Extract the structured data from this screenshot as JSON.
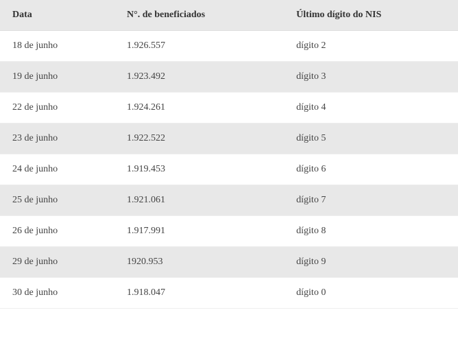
{
  "table": {
    "columns": [
      {
        "key": "data",
        "label": "Data"
      },
      {
        "key": "beneficiados",
        "label": "N°. de beneficiados"
      },
      {
        "key": "nis",
        "label": "Último dígito do NIS"
      }
    ],
    "rows": [
      {
        "data": "18 de junho",
        "beneficiados": "1.926.557",
        "nis": "dígito 2"
      },
      {
        "data": "19 de junho",
        "beneficiados": "1.923.492",
        "nis": "dígito 3"
      },
      {
        "data": "22 de junho",
        "beneficiados": "1.924.261",
        "nis": "dígito 4"
      },
      {
        "data": "23 de junho",
        "beneficiados": "1.922.522",
        "nis": "dígito 5"
      },
      {
        "data": "24 de junho",
        "beneficiados": "1.919.453",
        "nis": "dígito 6"
      },
      {
        "data": "25 de junho",
        "beneficiados": "1.921.061",
        "nis": "dígito 7"
      },
      {
        "data": "26 de junho",
        "beneficiados": "1.917.991",
        "nis": "dígito 8"
      },
      {
        "data": "29 de junho",
        "beneficiados": "1920.953",
        "nis": "dígito 9"
      },
      {
        "data": "30 de junho",
        "beneficiados": "1.918.047",
        "nis": "dígito 0"
      }
    ],
    "styling": {
      "header_bg": "#e8e8e8",
      "row_odd_bg": "#ffffff",
      "row_even_bg": "#e8e8e8",
      "text_color": "#444444",
      "header_text_color": "#333333",
      "border_color": "#eeeeee",
      "font_family": "Georgia, serif",
      "font_size_pt": 14,
      "header_font_weight": "bold",
      "col_widths_pct": [
        25,
        37,
        38
      ]
    }
  }
}
